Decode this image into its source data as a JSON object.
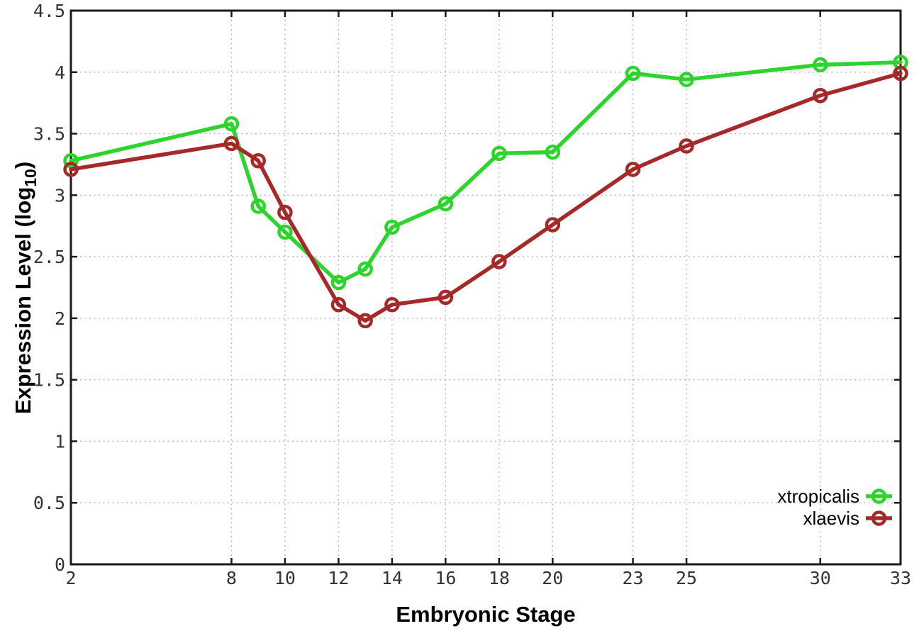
{
  "figure": {
    "background": "#ffffff"
  },
  "chart_data": {
    "type": "line",
    "title": "",
    "xlabel": "Embryonic Stage",
    "ylabel_prefix": "Expression Level (log",
    "ylabel_sub": "10",
    "ylabel_suffix": ")",
    "x": [
      2,
      8,
      9,
      10,
      12,
      13,
      14,
      16,
      18,
      20,
      23,
      25,
      30,
      33
    ],
    "series": [
      {
        "name": "xtropicalis",
        "color": "#2bd52b",
        "marker": "open-circle",
        "values": [
          3.28,
          3.58,
          2.91,
          2.7,
          2.29,
          2.4,
          2.74,
          2.93,
          3.34,
          3.35,
          3.99,
          3.94,
          4.06,
          4.08
        ]
      },
      {
        "name": "xlaevis",
        "color": "#a62929",
        "marker": "open-circle",
        "values": [
          3.21,
          3.42,
          3.28,
          2.86,
          2.11,
          1.98,
          2.11,
          2.17,
          2.46,
          2.76,
          3.21,
          3.4,
          3.81,
          3.99
        ]
      }
    ],
    "xlim": [
      2,
      33
    ],
    "ylim": [
      0,
      4.5
    ],
    "x_tick_values": [
      2,
      8,
      10,
      12,
      14,
      16,
      18,
      20,
      23,
      25,
      30,
      33
    ],
    "x_tick_labels": [
      "2",
      "8",
      "10",
      "12",
      "14",
      "16",
      "18",
      "20",
      "23",
      "25",
      "30",
      "33"
    ],
    "y_tick_values": [
      0,
      0.5,
      1,
      1.5,
      2,
      2.5,
      3,
      3.5,
      4,
      4.5
    ],
    "y_tick_labels": [
      "0",
      "0.5",
      "1",
      "1.5",
      "2",
      "2.5",
      "3",
      "3.5",
      "4",
      "4.5"
    ],
    "grid": true,
    "grid_style": "dotted",
    "legend_position": "bottom-right",
    "colors": {
      "grid": "#b5b5b5",
      "axis": "#1a1a1a",
      "tick_text": "#333333",
      "label_text": "#000000"
    }
  }
}
